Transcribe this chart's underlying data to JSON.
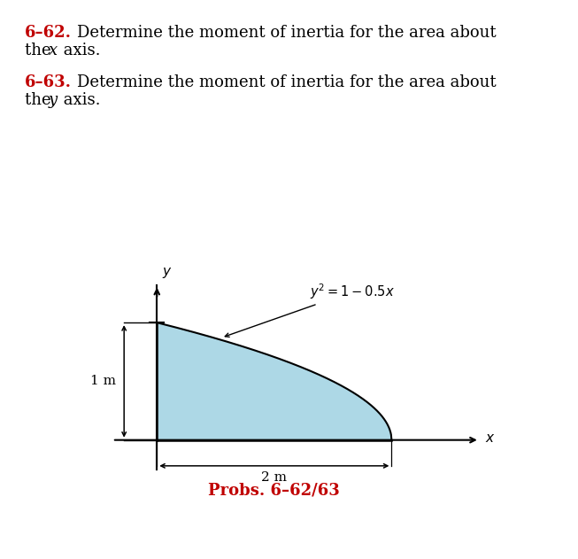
{
  "bg_color": "#ffffff",
  "title1_bold": "6–62.",
  "title2_bold": "6–63.",
  "fill_color": "#add8e6",
  "line_color": "#000000",
  "text_red": "#c00000",
  "text_black": "#000000",
  "font_size_text": 13,
  "font_size_diagram": 11,
  "label_1m": "1 m",
  "label_2m": "2 m",
  "label_probs": "Probs. 6–62/63",
  "curve_label": "$y^2 = 1 - 0.5x$"
}
